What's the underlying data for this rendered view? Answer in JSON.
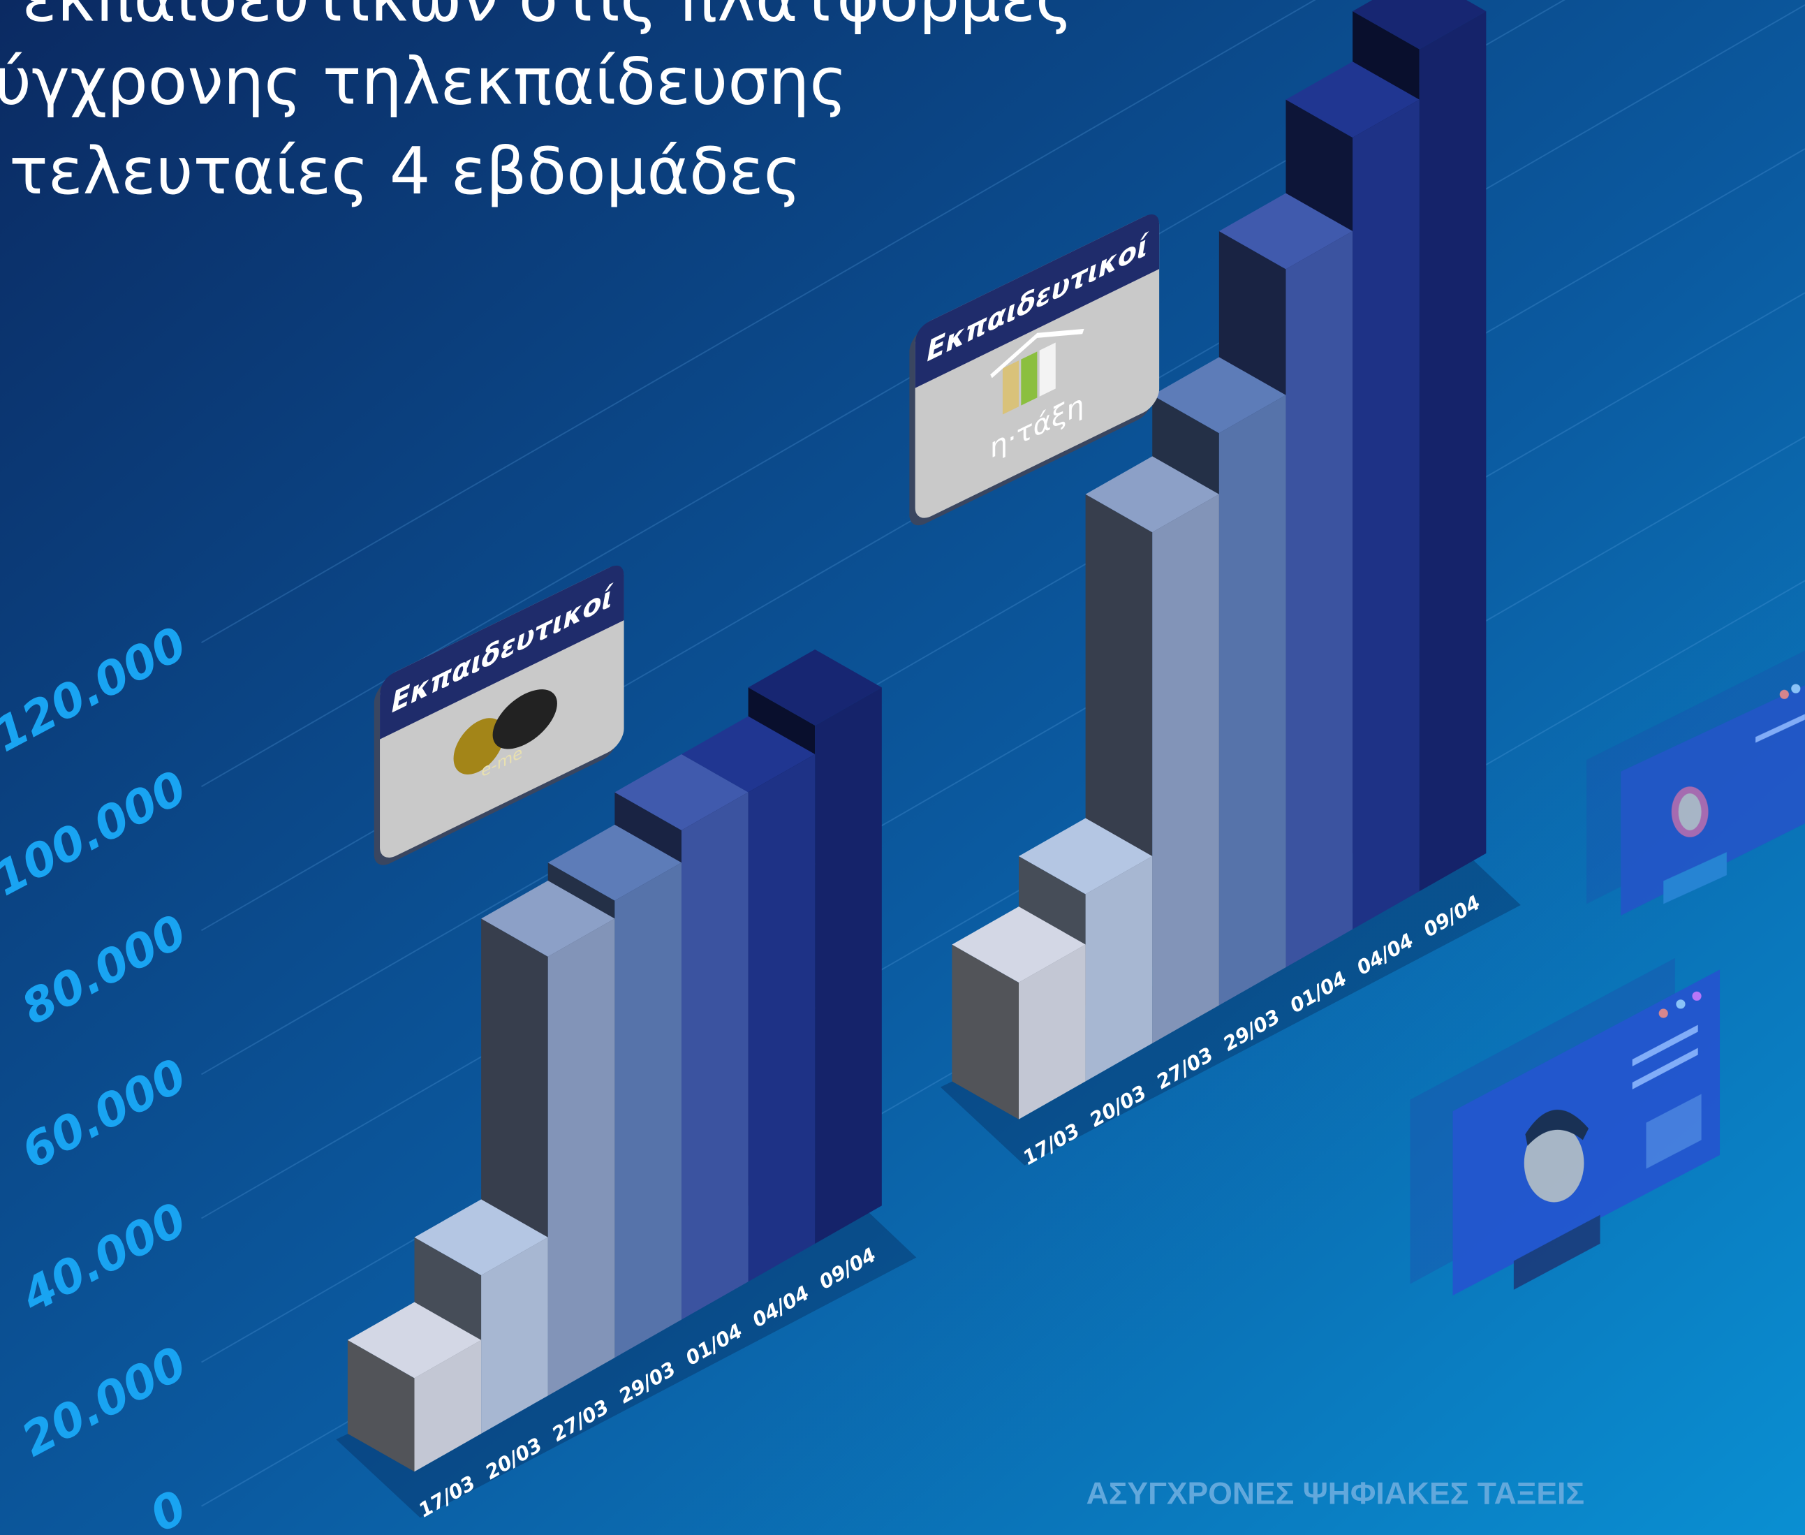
{
  "chart_data": {
    "type": "bar3d",
    "title": [
      "ν εκπαιδευτικών στις πλατφόρμες",
      "ύγχρονης τηλεκπαίδευσης",
      "τελευταίες 4 εβδομάδες"
    ],
    "categories": [
      "17/03",
      "20/03",
      "27/03",
      "29/03",
      "01/04",
      "04/04",
      "09/04"
    ],
    "colors": [
      "#c3c7d4",
      "#a7b7d2",
      "#8294b8",
      "#5673aa",
      "#3b53a0",
      "#1e3286",
      "#15236a"
    ],
    "series": [
      {
        "name": "e-me",
        "label": "Εκπαιδευτικοί",
        "values": [
          13000,
          22000,
          61000,
          63500,
          68000,
          68000,
          72000
        ]
      },
      {
        "name": "η·τάξη",
        "label": "Εκπαιδευτικοί",
        "values": [
          19000,
          26000,
          71000,
          79500,
          97000,
          110000,
          117000
        ]
      }
    ],
    "ylim": [
      0,
      120000
    ],
    "yticks": [
      0,
      {
        "value": 20000,
        "label": "20.000"
      },
      {
        "value": 40000,
        "label": "40.000"
      },
      {
        "value": 60000,
        "label": "60.000"
      },
      {
        "value": 80000,
        "label": "80.000"
      },
      {
        "value": 100000,
        "label": "100.000"
      },
      {
        "value": 120000,
        "label": "120.000"
      }
    ],
    "grid": true,
    "footer": "ΑΣΥΓΧΡΟΝΕΣ ΨΗΦΙΑΚΕΣ ΤΑΞΕΙΣ"
  }
}
